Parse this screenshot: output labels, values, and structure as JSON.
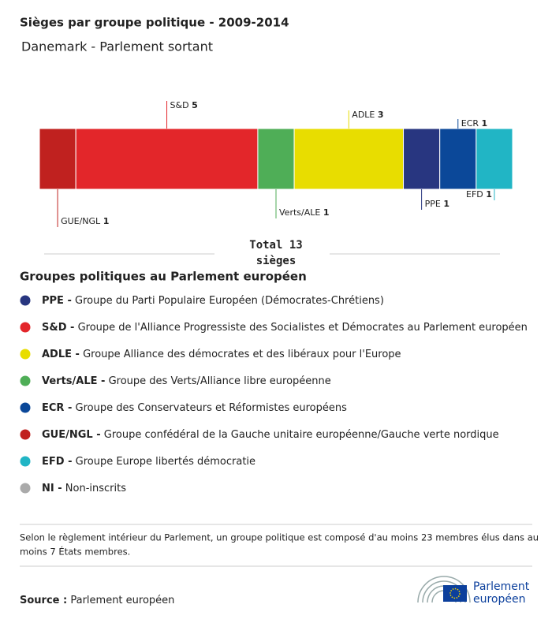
{
  "chart_data": {
    "type": "stacked-bar",
    "title": "Sièges par groupe politique - 2009-2014",
    "subtitle": "Danemark - Parlement sortant",
    "series": [
      {
        "name": "GUE/NGL",
        "color": "#c0211f",
        "values": [
          1
        ]
      },
      {
        "name": "S&D",
        "color": "#e3262a",
        "values": [
          5
        ]
      },
      {
        "name": "Verts/ALE",
        "color": "#4fae57",
        "values": [
          1
        ]
      },
      {
        "name": "ADLE",
        "color": "#e8dd00",
        "values": [
          3
        ]
      },
      {
        "name": "PPE",
        "color": "#283680",
        "values": [
          1
        ]
      },
      {
        "name": "ECR",
        "color": "#0b4899",
        "values": [
          1
        ]
      },
      {
        "name": "EFD",
        "color": "#21b5c5",
        "values": [
          1
        ]
      }
    ],
    "xlim": [
      0,
      13
    ],
    "total_label": "Total",
    "total": 13,
    "total_unit": "sièges",
    "legend_title": "Groupes politiques au Parlement européen",
    "legend": [
      {
        "abbr": "PPE -",
        "text": "Groupe du Parti Populaire Européen (Démocrates-Chrétiens)",
        "color": "#283680"
      },
      {
        "abbr": "S&D -",
        "text": "Groupe de l'Alliance Progressiste des Socialistes et Démocrates au Parlement européen",
        "color": "#e3262a"
      },
      {
        "abbr": "ADLE -",
        "text": "Groupe Alliance des démocrates et des libéraux pour l'Europe",
        "color": "#e8dd00"
      },
      {
        "abbr": "Verts/ALE -",
        "text": "Groupe des Verts/Alliance libre européenne",
        "color": "#4fae57"
      },
      {
        "abbr": "ECR -",
        "text": "Groupe des Conservateurs et Réformistes européens",
        "color": "#0b4899"
      },
      {
        "abbr": "GUE/NGL -",
        "text": "Groupe confédéral de la Gauche unitaire européenne/Gauche verte nordique",
        "color": "#c0211f"
      },
      {
        "abbr": "EFD -",
        "text": "Groupe Europe libertés démocratie",
        "color": "#21b5c5"
      },
      {
        "abbr": "NI -",
        "text": "Non-inscrits",
        "color": "#aaaaaa"
      }
    ],
    "note": [
      "Selon le règlement intérieur du Parlement, un groupe politique est composé d'au moins 23 membres élus dans au",
      "moins 7 États membres."
    ],
    "source_label": "Source :",
    "source": "Parlement européen",
    "logo": [
      "Parlement",
      "européen"
    ]
  }
}
